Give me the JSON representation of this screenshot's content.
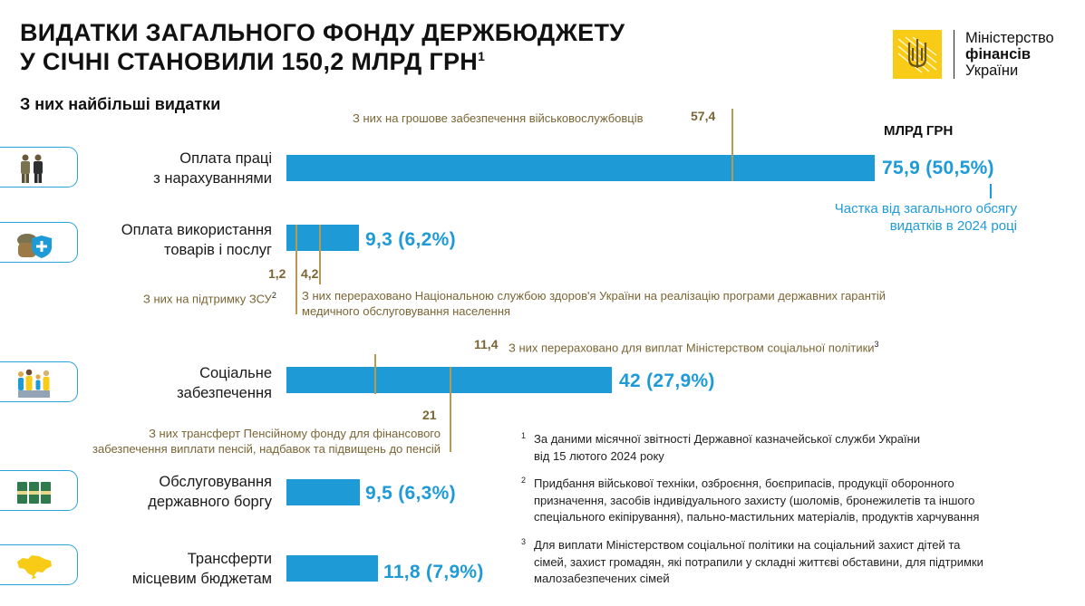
{
  "header": {
    "title_line1": "ВИДАТКИ ЗАГАЛЬНОГО ФОНДУ ДЕРЖБЮДЖЕТУ",
    "title_line2": "У СІЧНІ СТАНОВИЛИ 150,2 МЛРД ГРН",
    "title_sup": "1",
    "subtitle": "З них найбільші видатки",
    "unit": "МЛРД ГРН"
  },
  "logo": {
    "line1": "Міністерство",
    "line2": "фінансів",
    "line3": "України",
    "icon": "trident-emblem-icon",
    "color": "#f7cb16"
  },
  "colors": {
    "bar": "#1e9bd7",
    "annotation": "#b69a52",
    "annotation_text": "#7a6535"
  },
  "chart_data": {
    "type": "bar",
    "orientation": "horizontal",
    "categories": [
      "Оплата праці з нарахуваннями",
      "Оплата використання товарів і послуг",
      "Соціальне забезпечення",
      "Обслуговування державного боргу",
      "Трансферти місцевим бюджетам"
    ],
    "category_lines": [
      [
        "Оплата праці",
        "з нарахуваннями"
      ],
      [
        "Оплата використання",
        "товарів і послуг"
      ],
      [
        "Соціальне",
        "забезпечення"
      ],
      [
        "Обслуговування",
        "державного боргу"
      ],
      [
        "Трансферти",
        "місцевим бюджетам"
      ]
    ],
    "values": [
      75.9,
      9.3,
      42,
      9.5,
      11.8
    ],
    "shares": [
      50.5,
      6.2,
      27.9,
      6.3,
      7.9
    ],
    "value_labels": [
      "75,9 (50,5%)",
      "9,3 (6,2%)",
      "42 (27,9%)",
      "9,5 (6,3%)",
      "11,8 (7,9%)"
    ],
    "icons": [
      "soldiers-icon",
      "supplies-medical-icon",
      "family-icon",
      "money-stacks-icon",
      "ukraine-map-icon"
    ],
    "share_note_line1": "Частка від загального обсягу",
    "share_note_line2": "видатків в 2024 році",
    "annotations": [
      {
        "category": 0,
        "value": 57.4,
        "label": "57,4",
        "text": "З них на грошове забезпечення військовослужбовців"
      },
      {
        "category": 1,
        "value": 1.2,
        "label": "1,2",
        "text": "З них на підтримку ЗСУ",
        "sup": "2"
      },
      {
        "category": 1,
        "value": 4.2,
        "label": "4,2",
        "text_line1": "З них перераховано Національною службою здоров'я України на реалізацію програми державних гарантій",
        "text_line2": "медичного обслуговування населення"
      },
      {
        "category": 2,
        "value": 11.4,
        "label": "11,4",
        "text": "З них перераховано для виплат Міністерством соціальної політики",
        "sup": "3"
      },
      {
        "category": 2,
        "value": 21,
        "label": "21",
        "text_line1": "З них трансферт Пенсійному фонду для фінансового",
        "text_line2": "забезпечення виплати пенсій, надбавок та підвищень до пенсій"
      }
    ]
  },
  "footnotes": [
    {
      "mark": "1",
      "lines": [
        "За даними місячної звітності Державної казначейської служби України",
        "від 15 лютого 2024 року"
      ]
    },
    {
      "mark": "2",
      "lines": [
        "Придбання військової техніки, озброєння, боєприпасів, продукції оборонного",
        "призначення, засобів індивідуального захисту (шоломів, бронежилетів та іншого",
        "спеціального екіпірування), пально-мастильних матеріалів, продуктів харчування"
      ]
    },
    {
      "mark": "3",
      "lines": [
        "Для виплати Міністерством соціальної політики на соціальний захист дітей та",
        "сімей, захист громадян, які потрапили у складні життєві обставини, для підтримки",
        "малозабезпечених сімей"
      ]
    }
  ]
}
